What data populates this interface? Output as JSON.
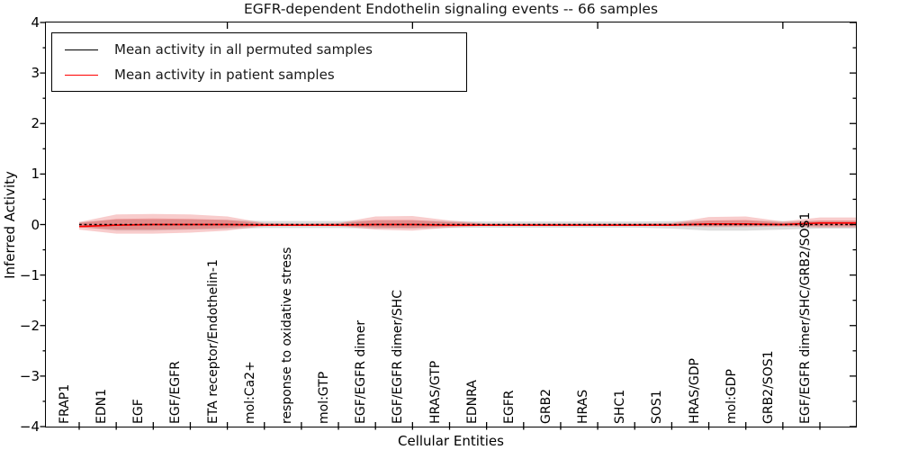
{
  "chart_data": {
    "type": "line",
    "title": "EGFR-dependent Endothelin signaling events -- 66 samples",
    "xlabel": "Cellular Entities",
    "ylabel": "Inferred Activity",
    "ylim": [
      -4,
      4
    ],
    "ytick_major_step": 1,
    "ytick_minor_step": 0.5,
    "grid": false,
    "legend_position": "upper left",
    "categories": [
      "FRAP1",
      "EDN1",
      "EGF",
      "EGF/EGFR",
      "ETA receptor/Endothelin-1",
      "mol:Ca2+",
      "response to oxidative stress",
      "mol:GTP",
      "EGF/EGFR dimer",
      "EGF/EGFR dimer/SHC",
      "HRAS/GTP",
      "EDNRA",
      "EGFR",
      "GRB2",
      "HRAS",
      "SHC1",
      "SOS1",
      "HRAS/GDP",
      "mol:GDP",
      "GRB2/SOS1",
      "EGF/EGFR dimer/SHC/GRB2/SOS1"
    ],
    "series": [
      {
        "name": "Mean activity in all permuted samples",
        "color": "#000000",
        "style": "dashed",
        "values": [
          0,
          0,
          0,
          0,
          0,
          0,
          0,
          0,
          0,
          0,
          0,
          0,
          0,
          0,
          0,
          0,
          0,
          0,
          0,
          0,
          0
        ]
      },
      {
        "name": "Mean activity in patient samples",
        "color": "#ff0000",
        "style": "solid",
        "values": [
          -0.04,
          -0.01,
          0,
          0,
          0,
          -0.01,
          -0.01,
          -0.01,
          0,
          0,
          -0.01,
          -0.01,
          -0.01,
          -0.01,
          -0.01,
          -0.01,
          -0.01,
          0.01,
          0.01,
          0,
          0.03
        ]
      }
    ],
    "bands": [
      {
        "name": "permuted-spread-band",
        "color": "#bbbbbb",
        "opacity": 0.5,
        "upper": [
          0.05,
          0.1,
          0.1,
          0.1,
          0.09,
          0.07,
          0.07,
          0.07,
          0.08,
          0.08,
          0.07,
          0.06,
          0.06,
          0.06,
          0.06,
          0.06,
          0.07,
          0.08,
          0.08,
          0.07,
          0.07
        ],
        "lower": [
          -0.05,
          -0.12,
          -0.12,
          -0.1,
          -0.09,
          -0.07,
          -0.07,
          -0.07,
          -0.08,
          -0.08,
          -0.07,
          -0.06,
          -0.06,
          -0.06,
          -0.06,
          -0.06,
          -0.08,
          -0.12,
          -0.12,
          -0.1,
          -0.08
        ]
      },
      {
        "name": "patient-spread-outer-band",
        "color": "#e86060",
        "opacity": 0.32,
        "upper": [
          0.05,
          0.2,
          0.21,
          0.2,
          0.16,
          0.03,
          0.02,
          0.03,
          0.16,
          0.17,
          0.08,
          0.02,
          0.02,
          0.02,
          0.02,
          0.02,
          0.03,
          0.15,
          0.16,
          0.06,
          0.14
        ],
        "lower": [
          -0.1,
          -0.18,
          -0.18,
          -0.16,
          -0.12,
          -0.03,
          -0.02,
          -0.03,
          -0.1,
          -0.12,
          -0.06,
          -0.02,
          -0.02,
          -0.02,
          -0.02,
          -0.02,
          -0.03,
          -0.05,
          -0.05,
          -0.04,
          -0.06
        ]
      },
      {
        "name": "patient-spread-inner-band",
        "color": "#e14f4f",
        "opacity": 0.38,
        "upper": [
          0.03,
          0.11,
          0.12,
          0.11,
          0.09,
          0.017,
          0.011,
          0.017,
          0.09,
          0.09,
          0.044,
          0.011,
          0.011,
          0.011,
          0.011,
          0.011,
          0.017,
          0.08,
          0.09,
          0.033,
          0.08
        ],
        "lower": [
          -0.055,
          -0.1,
          -0.1,
          -0.09,
          -0.066,
          -0.017,
          -0.011,
          -0.017,
          -0.055,
          -0.066,
          -0.033,
          -0.011,
          -0.011,
          -0.011,
          -0.011,
          -0.011,
          -0.017,
          -0.028,
          -0.028,
          -0.022,
          -0.033
        ]
      }
    ],
    "top_axis_tick_indices": [
      4,
      9,
      14,
      19
    ]
  }
}
